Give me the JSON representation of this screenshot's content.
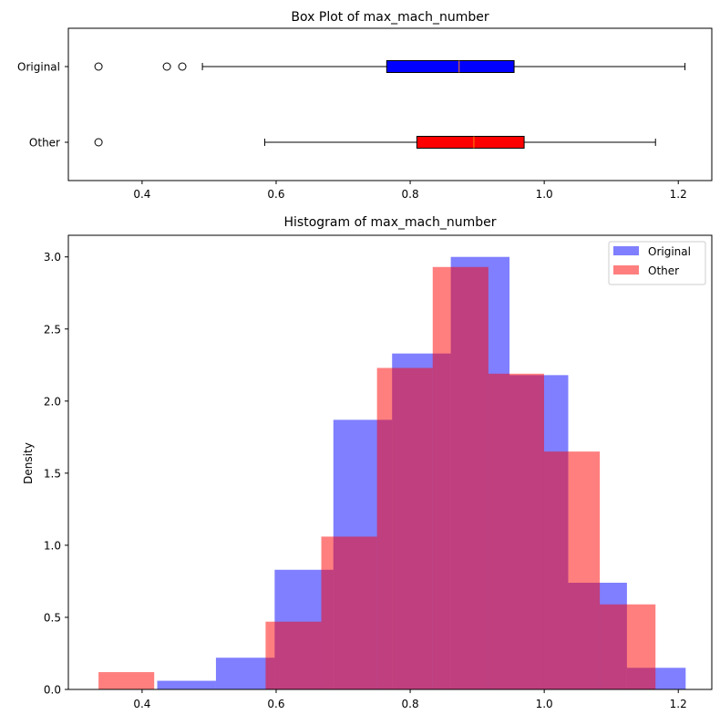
{
  "chart_data": [
    {
      "type": "box",
      "title": "Box Plot of max_mach_number",
      "xlim": [
        0.29,
        1.25
      ],
      "xticks": [
        "0.4",
        "0.6",
        "0.8",
        "1.0",
        "1.2"
      ],
      "grid": false,
      "series": [
        {
          "name": "Original",
          "color": "#0000ff",
          "median_color": "#ff7f0e",
          "whisker_low": 0.49,
          "q1": 0.765,
          "median": 0.873,
          "q3": 0.955,
          "whisker_high": 1.21,
          "outliers": [
            0.335,
            0.437,
            0.46
          ]
        },
        {
          "name": "Other",
          "color": "#ff0000",
          "median_color": "#ff7f0e",
          "whisker_low": 0.583,
          "q1": 0.81,
          "median": 0.895,
          "q3": 0.97,
          "whisker_high": 1.166,
          "outliers": [
            0.335
          ]
        }
      ]
    },
    {
      "type": "histogram",
      "title": "Histogram of max_mach_number",
      "xlabel": "",
      "ylabel": "Density",
      "xlim": [
        0.29,
        1.25
      ],
      "ylim": [
        0,
        3.15
      ],
      "xticks": [
        "0.4",
        "0.6",
        "0.8",
        "1.0",
        "1.2"
      ],
      "yticks": [
        "0.0",
        "0.5",
        "1.0",
        "1.5",
        "2.0",
        "2.5",
        "3.0"
      ],
      "legend": "top-right",
      "grid": false,
      "series": [
        {
          "name": "Original",
          "color": "#0000ff",
          "alpha": 0.5,
          "edges": [
            0.335,
            0.4226,
            0.5102,
            0.5978,
            0.6854,
            0.773,
            0.8606,
            0.9482,
            1.0358,
            1.1234,
            1.211
          ],
          "values": [
            0,
            0.06,
            0.22,
            0.83,
            1.87,
            2.33,
            3.0,
            2.18,
            0.74,
            0.15
          ]
        },
        {
          "name": "Other",
          "color": "#ff0000",
          "alpha": 0.5,
          "edges": [
            0.335,
            0.4181,
            0.5012,
            0.5843,
            0.6674,
            0.7505,
            0.8336,
            0.9167,
            0.9998,
            1.0829,
            1.166
          ],
          "values": [
            0.12,
            0,
            0,
            0.47,
            1.06,
            2.23,
            2.93,
            2.19,
            1.65,
            0.59
          ]
        }
      ]
    }
  ]
}
